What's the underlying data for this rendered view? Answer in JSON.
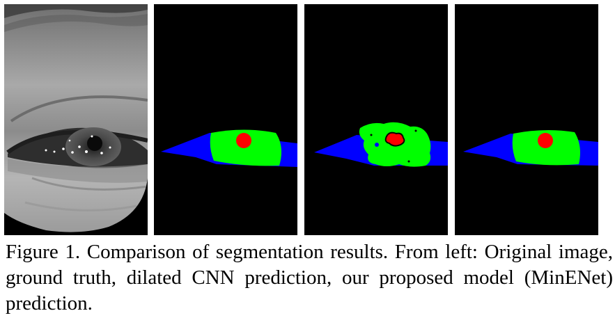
{
  "figure": {
    "caption": "Figure 1. Comparison of segmentation results. From left: Original image, ground truth, dilated CNN prediction, our proposed model (MinENet) prediction.",
    "panels": [
      {
        "id": "original",
        "kind": "grayscale-eye-photo"
      },
      {
        "id": "ground-truth",
        "kind": "segmentation-mask"
      },
      {
        "id": "dilated-cnn-prediction",
        "kind": "segmentation-mask"
      },
      {
        "id": "minenet-prediction",
        "kind": "segmentation-mask"
      }
    ]
  },
  "colors": {
    "background": "#000000",
    "sclera": "#0000ff",
    "iris": "#00ff00",
    "pupil": "#ff0000"
  }
}
